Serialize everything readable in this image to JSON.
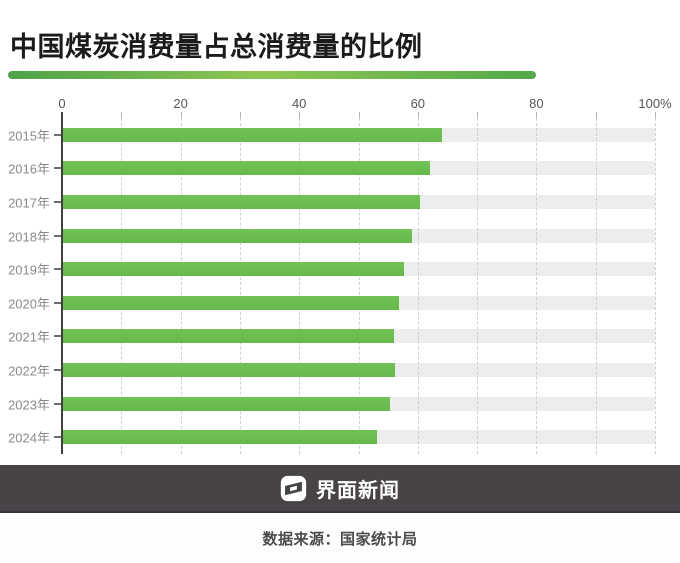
{
  "title": "中国煤炭消费量占总消费量的比例",
  "chart_data": {
    "type": "bar",
    "orientation": "horizontal",
    "title": "中国煤炭消费量占总消费量的比例",
    "categories": [
      "2015年",
      "2016年",
      "2017年",
      "2018年",
      "2019年",
      "2020年",
      "2021年",
      "2022年",
      "2023年",
      "2024年"
    ],
    "values": [
      64.0,
      62.0,
      60.4,
      59.0,
      57.7,
      56.8,
      56.0,
      56.2,
      55.3,
      53.2
    ],
    "unit": "%",
    "xlim": [
      0,
      100
    ],
    "x_ticks": [
      {
        "value": 0,
        "label": "0"
      },
      {
        "value": 20,
        "label": "20"
      },
      {
        "value": 40,
        "label": "40"
      },
      {
        "value": 60,
        "label": "60"
      },
      {
        "value": 80,
        "label": "80"
      },
      {
        "value": 100,
        "label": "100%"
      }
    ],
    "grid": {
      "show": true,
      "interval": 10,
      "style": "dashed"
    },
    "legend": "none",
    "bar_color": "#6abe4e",
    "track_color": "#ededed"
  },
  "footer": {
    "brand": "界面新闻",
    "source": "数据来源：国家统计局"
  },
  "colors": {
    "title_text": "#1b1b1b",
    "underline_gradient": [
      "#4fa24a",
      "#8fc653",
      "#52a94a"
    ],
    "axis_text": "#565656",
    "year_text": "#8a8a8a",
    "brand_bar_bg": "#474347",
    "source_text": "#4b4b4b"
  }
}
